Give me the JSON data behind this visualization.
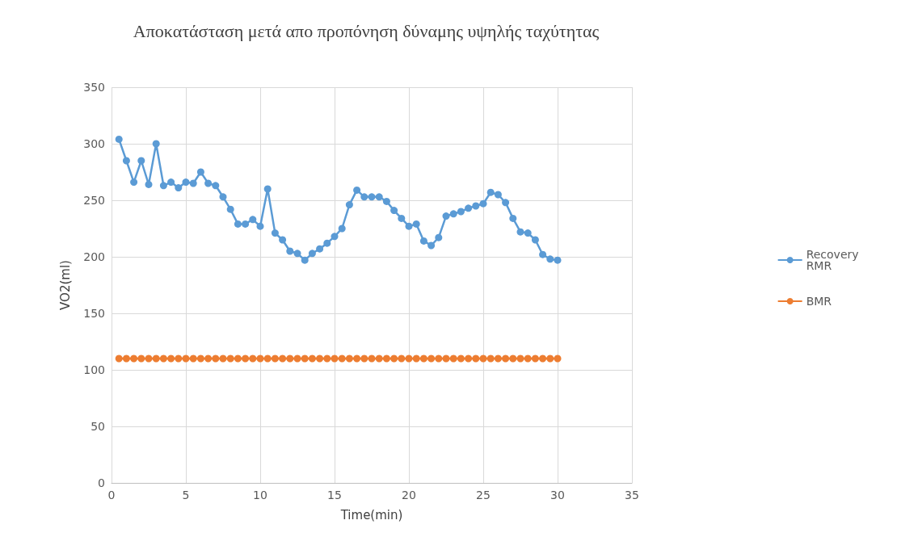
{
  "chart_data": {
    "type": "line",
    "title": "Αποκατάσταση μετά απο προπόνηση δύναμης υψηλής ταχύτητας",
    "xlabel": "Time(min)",
    "ylabel": "VO2(ml)",
    "x": [
      0.5,
      1,
      1.5,
      2,
      2.5,
      3,
      3.5,
      4,
      4.5,
      5,
      5.5,
      6,
      6.5,
      7,
      7.5,
      8,
      8.5,
      9,
      9.5,
      10,
      10.5,
      11,
      11.5,
      12,
      12.5,
      13,
      13.5,
      14,
      14.5,
      15,
      15.5,
      16,
      16.5,
      17,
      17.5,
      18,
      18.5,
      19,
      19.5,
      20,
      20.5,
      21,
      21.5,
      22,
      22.5,
      23,
      23.5,
      24,
      24.5,
      25,
      25.5,
      26,
      26.5,
      27,
      27.5,
      28,
      28.5,
      29,
      29.5,
      30
    ],
    "series": [
      {
        "name": "Recovery RMR",
        "color": "#5b9bd5",
        "values": [
          304,
          285,
          266,
          285,
          264,
          300,
          263,
          266,
          261,
          266,
          265,
          275,
          265,
          263,
          253,
          242,
          229,
          229,
          233,
          227,
          260,
          221,
          215,
          205,
          203,
          197,
          203,
          207,
          212,
          218,
          225,
          246,
          259,
          253,
          253,
          253,
          249,
          241,
          234,
          227,
          229,
          214,
          210,
          217,
          236,
          238,
          240,
          243,
          245,
          247,
          257,
          255,
          248,
          234,
          222,
          221,
          215,
          202,
          198,
          197
        ]
      },
      {
        "name": "BMR",
        "color": "#ed7d31",
        "values": [
          110,
          110,
          110,
          110,
          110,
          110,
          110,
          110,
          110,
          110,
          110,
          110,
          110,
          110,
          110,
          110,
          110,
          110,
          110,
          110,
          110,
          110,
          110,
          110,
          110,
          110,
          110,
          110,
          110,
          110,
          110,
          110,
          110,
          110,
          110,
          110,
          110,
          110,
          110,
          110,
          110,
          110,
          110,
          110,
          110,
          110,
          110,
          110,
          110,
          110,
          110,
          110,
          110,
          110,
          110,
          110,
          110,
          110,
          110,
          110
        ]
      }
    ],
    "xlim": [
      0,
      35
    ],
    "xticks": [
      0,
      5,
      10,
      15,
      20,
      25,
      30,
      35
    ],
    "ylim": [
      0,
      350
    ],
    "yticks": [
      0,
      50,
      100,
      150,
      200,
      250,
      300,
      350
    ],
    "grid": true,
    "legend": "right",
    "marker": "circle",
    "line_style": "solid"
  }
}
